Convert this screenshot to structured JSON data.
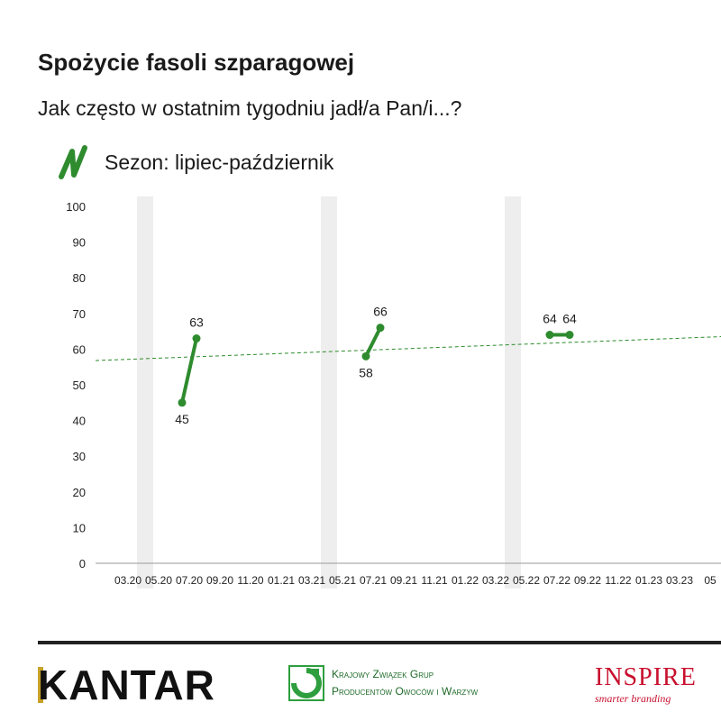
{
  "title": "Spożycie fasoli szparagowej",
  "subtitle": "Jak często w ostatnim tygodniu jadł/a Pan/i...?",
  "legend": {
    "label": "Sezon: lipiec-październik",
    "color": "#2e8b2e"
  },
  "chart_data": {
    "type": "line",
    "title": "Spożycie fasoli szparagowej",
    "subtitle": "Jak często w ostatnim tygodniu jadł/a Pan/i...?",
    "categories": [
      "03.20",
      "05.20",
      "07.20",
      "09.20",
      "11.20",
      "01.21",
      "03.21",
      "05.21",
      "07.21",
      "09.21",
      "11.21",
      "01.22",
      "03.22",
      "05.22",
      "07.22",
      "09.22",
      "11.22",
      "01.23",
      "03.23",
      "05"
    ],
    "ylim": [
      0,
      100
    ],
    "yticks": [
      0,
      10,
      20,
      30,
      40,
      50,
      60,
      70,
      80,
      90,
      100
    ],
    "grid": false,
    "series": [
      {
        "name": "Sezon: lipiec-październik",
        "color": "#2e8b2e",
        "segments": [
          {
            "points": [
              {
                "x": "07.20",
                "y": 45
              },
              {
                "x": "09.20",
                "y": 63
              }
            ]
          },
          {
            "points": [
              {
                "x": "07.21",
                "y": 58
              },
              {
                "x": "09.21",
                "y": 66
              }
            ]
          },
          {
            "points": [
              {
                "x": "07.22",
                "y": 64
              },
              {
                "x": "09.22",
                "y": 64
              }
            ]
          }
        ]
      }
    ],
    "trendline": {
      "color": "#2e8b2e",
      "style": "dashed",
      "start_y": 56.8,
      "end_y": 63.5
    },
    "season_highlights": [
      "07.20",
      "07.21",
      "07.22"
    ],
    "highlight_color": "#eeeeee"
  },
  "footer": {
    "kantar": "KANTAR",
    "kzg_line1": "Krajowy Związek Grup",
    "kzg_line2": "Producentów Owoców i Warzyw",
    "inspire_name": "INSPIRE",
    "inspire_tag": "smarter branding"
  }
}
